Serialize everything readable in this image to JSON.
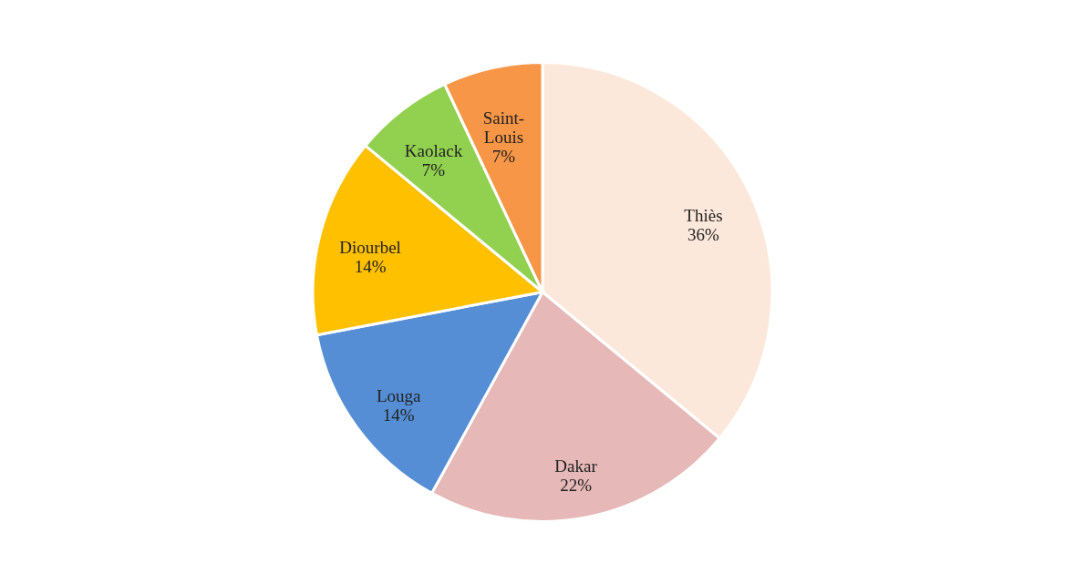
{
  "chart_data": {
    "type": "pie",
    "categories": [
      "Thiès",
      "Dakar",
      "Louga",
      "Diourbel",
      "Kaolack",
      "Saint-Louis"
    ],
    "values": [
      36,
      22,
      14,
      14,
      7,
      7
    ],
    "colors": [
      "#fce8da",
      "#e6b8b7",
      "#558ed5",
      "#ffc000",
      "#92d050",
      "#f79646"
    ],
    "value_labels": [
      "36%",
      "22%",
      "14%",
      "14%",
      "7%",
      "7%"
    ],
    "legend": false
  }
}
